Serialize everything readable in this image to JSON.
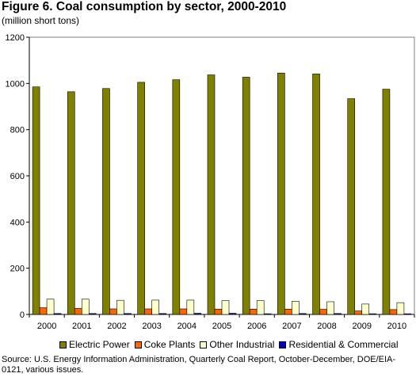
{
  "header": {
    "title": "Figure 6. Coal consumption by sector, 2000-2010",
    "units": "(million short tons)"
  },
  "source": "Source: U.S. Energy Information Administration, Quarterly Coal Report, October-December, DOE/EIA-0121, various issues.",
  "chart_data": {
    "type": "bar",
    "title": "Figure 6. Coal consumption by sector, 2000-2010",
    "subtitle": "(million short tons)",
    "xlabel": "",
    "ylabel": "",
    "ylim": [
      0,
      1200
    ],
    "yticks": [
      0,
      200,
      400,
      600,
      800,
      1000,
      1200
    ],
    "grid": false,
    "legend_position": "bottom",
    "categories": [
      "2000",
      "2001",
      "2002",
      "2003",
      "2004",
      "2005",
      "2006",
      "2007",
      "2008",
      "2009",
      "2010"
    ],
    "series": [
      {
        "name": "Electric Power",
        "color": "#808000",
        "values": [
          985,
          964,
          978,
          1005,
          1016,
          1037,
          1027,
          1045,
          1041,
          934,
          975
        ]
      },
      {
        "name": "Coke Plants",
        "color": "#ff6600",
        "values": [
          29,
          26,
          24,
          24,
          24,
          23,
          23,
          23,
          22,
          15,
          21
        ]
      },
      {
        "name": "Other Industrial",
        "color": "#ffffcc",
        "values": [
          66,
          66,
          61,
          62,
          62,
          60,
          60,
          57,
          55,
          45,
          51
        ]
      },
      {
        "name": "Residential & Commercial",
        "color": "#0000cc",
        "values": [
          4,
          4,
          4,
          4,
          5,
          5,
          3,
          4,
          4,
          3,
          3
        ]
      }
    ]
  }
}
